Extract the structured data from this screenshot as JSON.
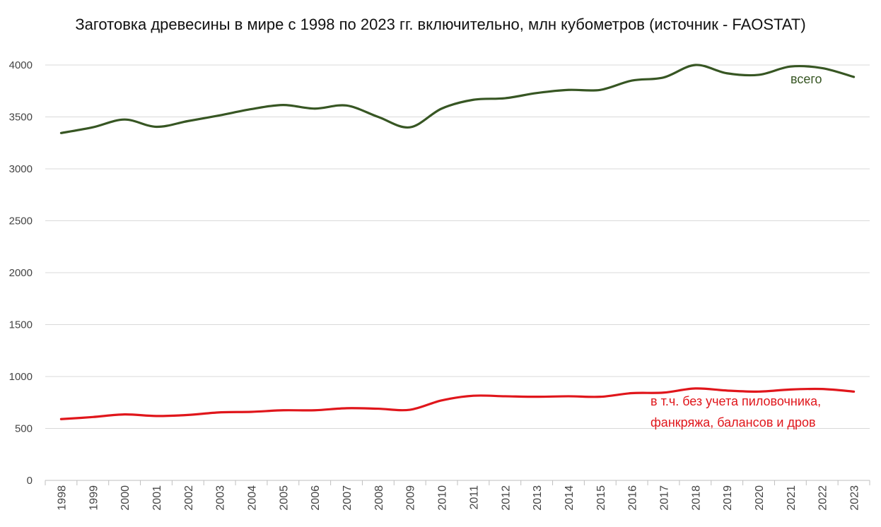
{
  "chart_data": {
    "type": "line",
    "title": "Заготовка древесины в мире с 1998 по 2023 гг. включительно, млн кубометров (источник - FAOSTAT)",
    "x": [
      "1998",
      "1999",
      "2000",
      "2001",
      "2002",
      "2003",
      "2004",
      "2005",
      "2006",
      "2007",
      "2008",
      "2009",
      "2010",
      "2011",
      "2012",
      "2013",
      "2014",
      "2015",
      "2016",
      "2017",
      "2018",
      "2019",
      "2020",
      "2021",
      "2022",
      "2023"
    ],
    "yticks": [
      "0",
      "500",
      "1000",
      "1500",
      "2000",
      "2500",
      "3000",
      "3500",
      "4000"
    ],
    "ylim": [
      0,
      4000
    ],
    "grid": true,
    "legend": "none",
    "series": [
      {
        "name": "всего",
        "color": "#375623",
        "values": [
          3345,
          3400,
          3475,
          3405,
          3460,
          3515,
          3575,
          3615,
          3580,
          3610,
          3500,
          3400,
          3580,
          3665,
          3680,
          3730,
          3760,
          3760,
          3850,
          3880,
          4000,
          3920,
          3905,
          3985,
          3970,
          3885
        ],
        "label_lines": [
          "всего"
        ]
      },
      {
        "name": "в т.ч. без учета пиловочника, фанкряжа, балансов и дров",
        "color": "#e0161b",
        "values": [
          590,
          610,
          635,
          620,
          630,
          655,
          660,
          675,
          675,
          695,
          690,
          680,
          770,
          815,
          810,
          805,
          810,
          805,
          840,
          845,
          885,
          865,
          855,
          875,
          880,
          855
        ],
        "label_lines": [
          "в т.ч. без учета пиловочника,",
          "фанкряжа, балансов и дров"
        ]
      }
    ]
  }
}
